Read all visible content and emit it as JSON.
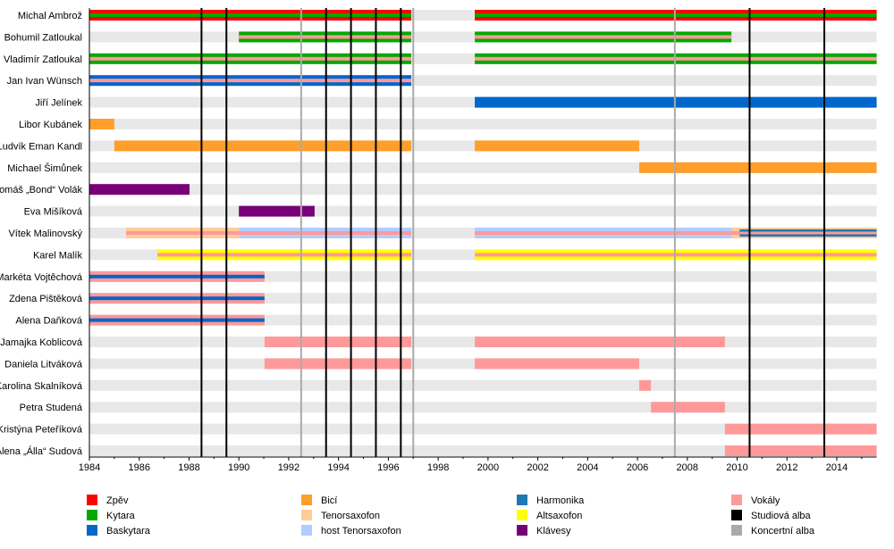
{
  "chart_data": {
    "type": "timeline",
    "title": "",
    "xlim": [
      1984,
      2015.6
    ],
    "x_ticks": [
      1984,
      1986,
      1988,
      1990,
      1992,
      1994,
      1996,
      1998,
      2000,
      2002,
      2004,
      2006,
      2008,
      2010,
      2012,
      2014
    ],
    "roles": {
      "zpev": {
        "label": "Zpěv",
        "color": "#ff0000"
      },
      "kytara": {
        "label": "Kytara",
        "color": "#00aa00"
      },
      "baskytara": {
        "label": "Baskytara",
        "color": "#0066cc"
      },
      "bici": {
        "label": "Bicí",
        "color": "#ff9e2a"
      },
      "tenorsax": {
        "label": "Tenorsaxofon",
        "color": "#ffcc99"
      },
      "hosttenorsax": {
        "label": "host Tenorsaxofon",
        "color": "#b3ccff"
      },
      "harmonika": {
        "label": "Harmonika",
        "color": "#1f78b4"
      },
      "altsax": {
        "label": "Altsaxofon",
        "color": "#ffff00"
      },
      "klavesy": {
        "label": "Klávesy",
        "color": "#770077"
      },
      "vokaly": {
        "label": "Vokály",
        "color": "#ff9999"
      },
      "studio": {
        "label": "Studiová alba",
        "color": "#000000"
      },
      "koncert": {
        "label": "Koncertní alba",
        "color": "#aaaaaa"
      }
    },
    "legend_order": [
      [
        "zpev",
        "kytara",
        "baskytara"
      ],
      [
        "bici",
        "tenorsax",
        "hosttenorsax"
      ],
      [
        "harmonika",
        "altsax",
        "klavesy"
      ],
      [
        "vokaly",
        "studio",
        "koncert"
      ]
    ],
    "studio_albums": [
      1988.5,
      1989.5,
      1993.5,
      1994.5,
      1995.5,
      1996.5,
      2010.5,
      2013.5
    ],
    "concert_albums": [
      1992.5,
      1997.0,
      2007.5
    ],
    "members": [
      {
        "name": "Michal Ambrož",
        "bars": [
          {
            "start": 1984,
            "end": 1996.92,
            "layers": [
              "zpev",
              "kytara"
            ]
          },
          {
            "start": 1999.47,
            "end": 2015.6,
            "layers": [
              "zpev",
              "kytara"
            ]
          }
        ]
      },
      {
        "name": "Bohumil Zatloukal",
        "bars": [
          {
            "start": 1990,
            "end": 1996.92,
            "layers": [
              "kytara",
              "vokaly"
            ]
          },
          {
            "start": 1999.47,
            "end": 2009.77,
            "layers": [
              "kytara",
              "vokaly"
            ]
          }
        ]
      },
      {
        "name": "Vladimír Zatloukal",
        "bars": [
          {
            "start": 1984,
            "end": 1996.92,
            "layers": [
              "kytara",
              "vokaly"
            ]
          },
          {
            "start": 1999.47,
            "end": 2015.6,
            "layers": [
              "kytara",
              "vokaly"
            ]
          }
        ]
      },
      {
        "name": "Jan Ivan Wünsch",
        "bars": [
          {
            "start": 1984,
            "end": 1996.92,
            "layers": [
              "baskytara",
              "vokaly"
            ]
          }
        ]
      },
      {
        "name": "Jiří Jelínek",
        "bars": [
          {
            "start": 1999.47,
            "end": 2015.6,
            "layers": [
              "baskytara"
            ]
          }
        ]
      },
      {
        "name": "Libor Kubánek",
        "bars": [
          {
            "start": 1984,
            "end": 1985,
            "layers": [
              "bici"
            ]
          }
        ]
      },
      {
        "name": "Ludvík Eman Kandl",
        "bars": [
          {
            "start": 1985,
            "end": 1996.92,
            "layers": [
              "bici"
            ]
          },
          {
            "start": 1999.47,
            "end": 2006.07,
            "layers": [
              "bici"
            ]
          }
        ]
      },
      {
        "name": "Michael Šimůnek",
        "bars": [
          {
            "start": 2006.07,
            "end": 2015.6,
            "layers": [
              "bici"
            ]
          }
        ]
      },
      {
        "name": "Tomáš „Bond“ Volák",
        "bars": [
          {
            "start": 1984,
            "end": 1988.02,
            "layers": [
              "klavesy"
            ]
          }
        ]
      },
      {
        "name": "Eva Mišíková",
        "bars": [
          {
            "start": 1990,
            "end": 1993.04,
            "layers": [
              "klavesy"
            ]
          }
        ]
      },
      {
        "name": "Vítek Malinovský",
        "bars": [
          {
            "start": 1985.47,
            "end": 1990,
            "layers": [
              "tenorsax",
              "vokaly"
            ]
          },
          {
            "start": 1990,
            "end": 1996.92,
            "layers": [
              "hosttenorsax",
              "vokaly"
            ]
          },
          {
            "start": 1999.47,
            "end": 2009.8,
            "layers": [
              "hosttenorsax",
              "vokaly"
            ]
          },
          {
            "start": 2009.8,
            "end": 2010.1,
            "layers": [
              "tenorsax",
              "vokaly"
            ]
          },
          {
            "start": 2010.1,
            "end": 2015.6,
            "layers": [
              "tenorsax",
              "harmonika",
              "vokaly"
            ]
          }
        ]
      },
      {
        "name": "Karel Malík",
        "bars": [
          {
            "start": 1986.73,
            "end": 1996.92,
            "layers": [
              "altsax",
              "vokaly"
            ]
          },
          {
            "start": 1999.47,
            "end": 2015.6,
            "layers": [
              "altsax",
              "vokaly"
            ]
          }
        ]
      },
      {
        "name": "Markéta Vojtěchová",
        "bars": [
          {
            "start": 1984,
            "end": 1991.03,
            "layers": [
              "vokaly",
              "baskytara"
            ]
          }
        ]
      },
      {
        "name": "Zdena Pištěková",
        "bars": [
          {
            "start": 1984,
            "end": 1991.03,
            "layers": [
              "vokaly",
              "baskytara"
            ]
          }
        ]
      },
      {
        "name": "Alena Daňková",
        "bars": [
          {
            "start": 1984,
            "end": 1991.03,
            "layers": [
              "vokaly",
              "baskytara"
            ]
          }
        ]
      },
      {
        "name": "Jamajka Koblicová",
        "bars": [
          {
            "start": 1991.03,
            "end": 1996.92,
            "layers": [
              "vokaly"
            ]
          },
          {
            "start": 1999.47,
            "end": 2009.51,
            "layers": [
              "vokaly"
            ]
          }
        ]
      },
      {
        "name": "Daniela Litváková",
        "bars": [
          {
            "start": 1991.03,
            "end": 1996.92,
            "layers": [
              "vokaly"
            ]
          },
          {
            "start": 1999.47,
            "end": 2006.07,
            "layers": [
              "vokaly"
            ]
          }
        ]
      },
      {
        "name": "Karolina Skalníková",
        "bars": [
          {
            "start": 2006.07,
            "end": 2006.54,
            "layers": [
              "vokaly"
            ]
          }
        ]
      },
      {
        "name": "Petra Studená",
        "bars": [
          {
            "start": 2006.54,
            "end": 2009.51,
            "layers": [
              "vokaly"
            ]
          }
        ]
      },
      {
        "name": "Kristýna Peteříková",
        "bars": [
          {
            "start": 2009.51,
            "end": 2015.6,
            "layers": [
              "vokaly"
            ]
          }
        ]
      },
      {
        "name": "Alena „Álla“ Sudová",
        "bars": [
          {
            "start": 2009.51,
            "end": 2015.6,
            "layers": [
              "vokaly"
            ]
          }
        ]
      }
    ]
  }
}
